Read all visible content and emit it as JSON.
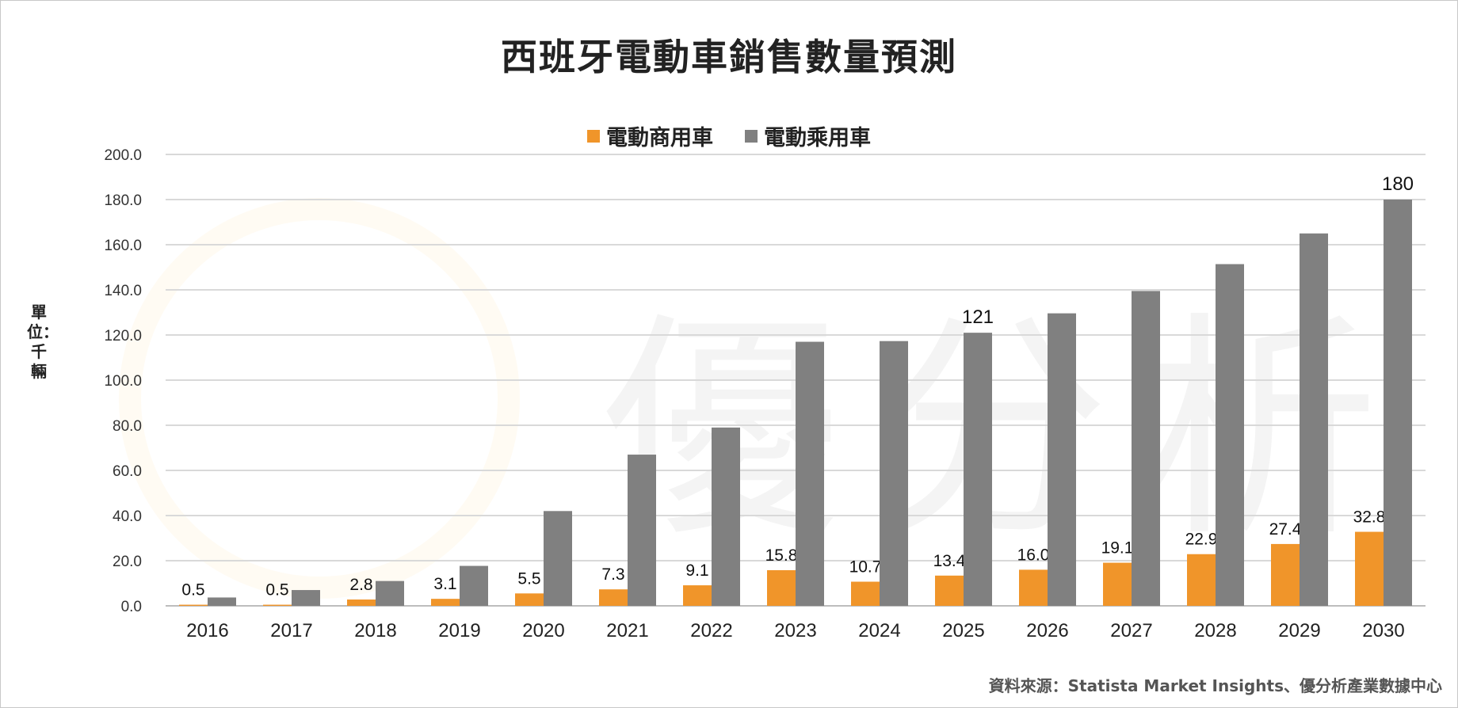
{
  "chart_data": {
    "type": "bar",
    "title": "西班牙電動車銷售數量預測",
    "ylabel": "單位：千輛",
    "xlabel": "",
    "ylim": [
      0,
      200
    ],
    "yticks": [
      "0.0",
      "20.0",
      "40.0",
      "60.0",
      "80.0",
      "100.0",
      "120.0",
      "140.0",
      "160.0",
      "180.0",
      "200.0"
    ],
    "grid": true,
    "legend_position": "top-center",
    "categories": [
      "2016",
      "2017",
      "2018",
      "2019",
      "2020",
      "2021",
      "2022",
      "2023",
      "2024",
      "2025",
      "2026",
      "2027",
      "2028",
      "2029",
      "2030"
    ],
    "series": [
      {
        "name": "電動商用車",
        "color": "#f0952a",
        "values": [
          0.5,
          0.5,
          2.8,
          3.1,
          5.5,
          7.3,
          9.1,
          15.8,
          10.7,
          13.4,
          16.0,
          19.1,
          22.9,
          27.4,
          32.8
        ],
        "labels": [
          "0.5",
          "0.5",
          "2.8",
          "3.1",
          "5.5",
          "7.3",
          "9.1",
          "15.8",
          "10.7",
          "13.4",
          "16.0",
          "19.1",
          "22.9",
          "27.4",
          "32.8"
        ]
      },
      {
        "name": "電動乘用車",
        "color": "#808080",
        "values": [
          3.7,
          7,
          11,
          17.7,
          42,
          67,
          79,
          117,
          117.3,
          121,
          129.6,
          139.5,
          151.4,
          165,
          180
        ],
        "labels": [
          "",
          "",
          "",
          "",
          "",
          "",
          "",
          "",
          "",
          "121",
          "",
          "",
          "",
          "",
          "180"
        ]
      }
    ]
  },
  "source": "資料來源：Statista Market Insights、優分析產業數據中心",
  "watermark": "優分析"
}
